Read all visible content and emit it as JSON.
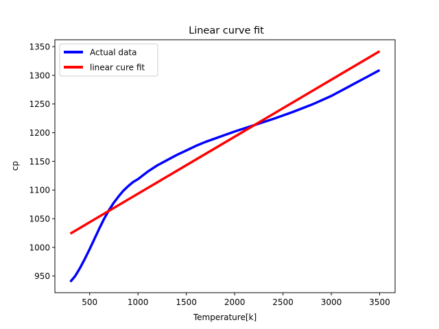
{
  "chart_data": {
    "type": "line",
    "title": "Linear curve fit",
    "xlabel": "Temperature[k]",
    "ylabel": "cp",
    "xlim": [
      140,
      3660
    ],
    "ylim": [
      921,
      1362
    ],
    "xticks": [
      500,
      1000,
      1500,
      2000,
      2500,
      3000,
      3500
    ],
    "yticks": [
      950,
      1000,
      1050,
      1100,
      1150,
      1200,
      1250,
      1300,
      1350
    ],
    "grid": false,
    "legend_position": "top-left",
    "series": [
      {
        "name": "Actual data",
        "color": "#0000ff",
        "x": [
          300,
          350,
          400,
          450,
          500,
          550,
          600,
          650,
          700,
          750,
          800,
          850,
          900,
          950,
          1000,
          1100,
          1200,
          1300,
          1400,
          1500,
          1600,
          1700,
          1800,
          1900,
          2000,
          2200,
          2400,
          2600,
          2800,
          3000,
          3200,
          3400,
          3500
        ],
        "y": [
          940,
          950,
          964,
          980,
          997,
          1015,
          1033,
          1050,
          1065,
          1078,
          1089,
          1099,
          1107,
          1114,
          1119,
          1132,
          1143,
          1152,
          1161,
          1169,
          1177,
          1184,
          1190,
          1196,
          1202,
          1213,
          1224,
          1236,
          1249,
          1264,
          1282,
          1300,
          1309
        ]
      },
      {
        "name": "linear cure fit",
        "color": "#ff0000",
        "x": [
          300,
          3500
        ],
        "y": [
          1024,
          1342
        ]
      }
    ]
  }
}
